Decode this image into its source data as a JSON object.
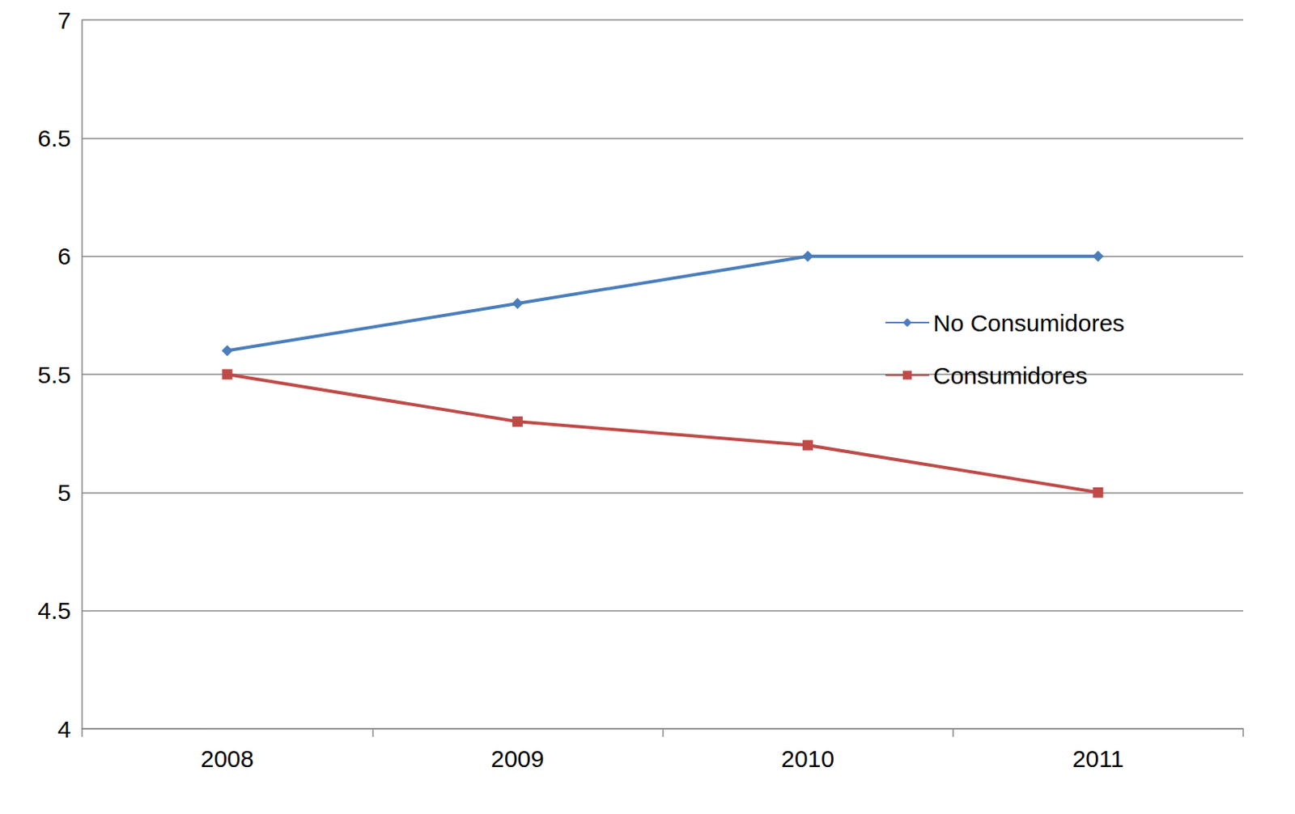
{
  "chart_data": {
    "type": "line",
    "categories": [
      "2008",
      "2009",
      "2010",
      "2011"
    ],
    "series": [
      {
        "name": "No Consumidores",
        "color": "#4a7ebb",
        "marker": "diamond",
        "values": [
          5.6,
          5.8,
          6.0,
          6.0
        ]
      },
      {
        "name": "Consumidores",
        "color": "#be4b48",
        "marker": "square",
        "values": [
          5.5,
          5.3,
          5.2,
          5.0
        ]
      }
    ],
    "ylim": [
      4,
      7
    ],
    "yticks": [
      4,
      4.5,
      5,
      5.5,
      6,
      6.5,
      7
    ],
    "grid": true,
    "legend": "right"
  }
}
